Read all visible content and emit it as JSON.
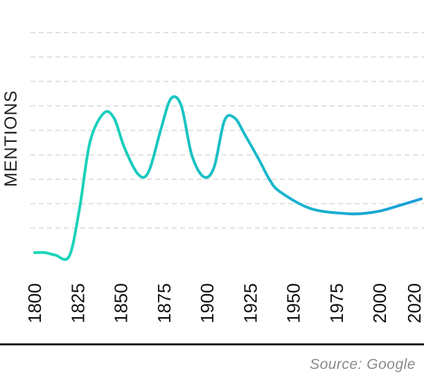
{
  "chart_data": {
    "type": "line",
    "ylabel": "MENTIONS",
    "xlabel": "",
    "title": "",
    "x_ticks": [
      "1800",
      "1825",
      "1850",
      "1875",
      "1900",
      "1925",
      "1950",
      "1975",
      "2000",
      "2020"
    ],
    "xlim": [
      1800,
      2024
    ],
    "ylim": [
      0,
      9
    ],
    "grid": true,
    "legend": "none",
    "series": [
      {
        "values": [
          [
            1800,
            0.0
          ],
          [
            1806,
            0.0
          ],
          [
            1812,
            -0.1
          ],
          [
            1820,
            -0.15
          ],
          [
            1826,
            1.8
          ],
          [
            1832,
            4.5
          ],
          [
            1840,
            5.7
          ],
          [
            1846,
            5.5
          ],
          [
            1852,
            4.3
          ],
          [
            1860,
            3.2
          ],
          [
            1866,
            3.3
          ],
          [
            1873,
            5.0
          ],
          [
            1879,
            6.3
          ],
          [
            1885,
            6.0
          ],
          [
            1891,
            4.0
          ],
          [
            1898,
            3.1
          ],
          [
            1904,
            3.5
          ],
          [
            1910,
            5.4
          ],
          [
            1916,
            5.5
          ],
          [
            1922,
            4.8
          ],
          [
            1930,
            3.8
          ],
          [
            1936,
            3.0
          ],
          [
            1942,
            2.5
          ],
          [
            1960,
            1.8
          ],
          [
            1980,
            1.6
          ],
          [
            1990,
            1.6
          ],
          [
            2000,
            1.7
          ],
          [
            2010,
            1.9
          ],
          [
            2024,
            2.2
          ]
        ]
      }
    ],
    "colors": {
      "line_start": "#19d9b6",
      "line_end": "#1aa0d8",
      "grid": "#d9d9d9"
    }
  },
  "footer": {
    "source": "Source: Google"
  }
}
